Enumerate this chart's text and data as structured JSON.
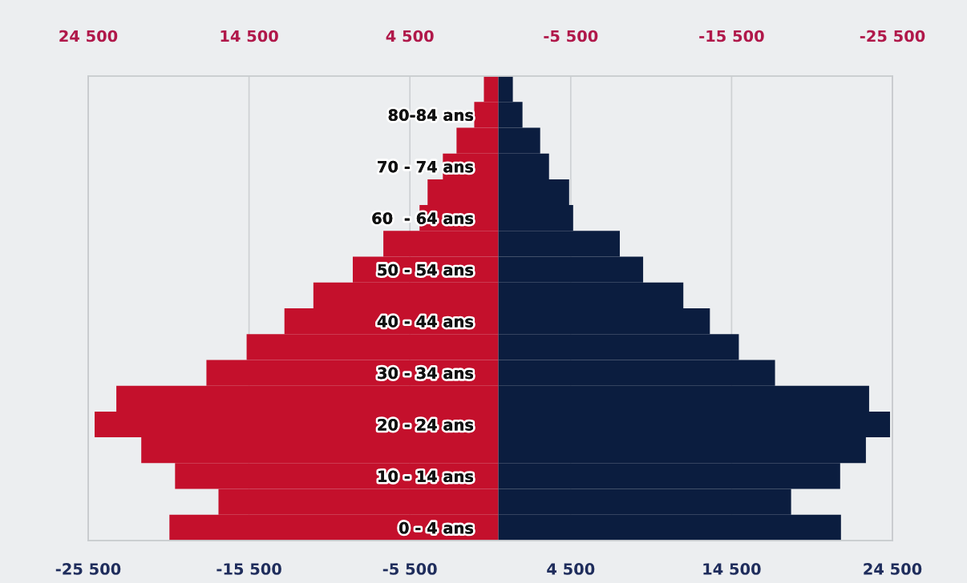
{
  "chart_data": {
    "type": "bar",
    "orientation": "horizontal",
    "stacked": true,
    "categories": [
      null,
      "80-84 ans",
      null,
      "70 - 74 ans",
      null,
      "60  - 64 ans",
      null,
      "50 - 54 ans",
      null,
      "40 - 44 ans",
      null,
      "30 - 34 ans",
      null,
      "20 - 24 ans",
      null,
      "10 - 14 ans",
      null,
      "0 - 4 ans"
    ],
    "series": [
      {
        "color": "#c4102c",
        "values": [
          -900,
          -1500,
          -2600,
          -3450,
          -4400,
          -4900,
          -7150,
          -9050,
          -11500,
          -13300,
          -15650,
          -18150,
          -23750,
          -25100,
          -22200,
          -20100,
          -17400,
          -20450
        ]
      },
      {
        "color": "#0b1d3f",
        "values": [
          900,
          1500,
          2600,
          3150,
          4400,
          4650,
          7550,
          9000,
          11500,
          13150,
          14950,
          17200,
          23050,
          24350,
          22850,
          21250,
          18200,
          21300
        ]
      }
    ],
    "xlim": [
      -25500,
      24500
    ],
    "xticks": [
      {
        "value": -25500,
        "label": "-25 500"
      },
      {
        "value": -15500,
        "label": "-15 500"
      },
      {
        "value": -5500,
        "label": "-5 500"
      },
      {
        "value": 4500,
        "label": "4 500"
      },
      {
        "value": 14500,
        "label": "14 500"
      },
      {
        "value": 24500,
        "label": "24 500"
      }
    ],
    "x2lim": [
      24500,
      -25500
    ],
    "x2ticks": [
      {
        "value": 24500,
        "label": "24 500"
      },
      {
        "value": 14500,
        "label": "14 500"
      },
      {
        "value": 4500,
        "label": "4 500"
      },
      {
        "value": -5500,
        "label": "-5 500"
      },
      {
        "value": -15500,
        "label": "-15 500"
      },
      {
        "value": -25500,
        "label": "-25 500"
      }
    ],
    "grid": "x"
  }
}
